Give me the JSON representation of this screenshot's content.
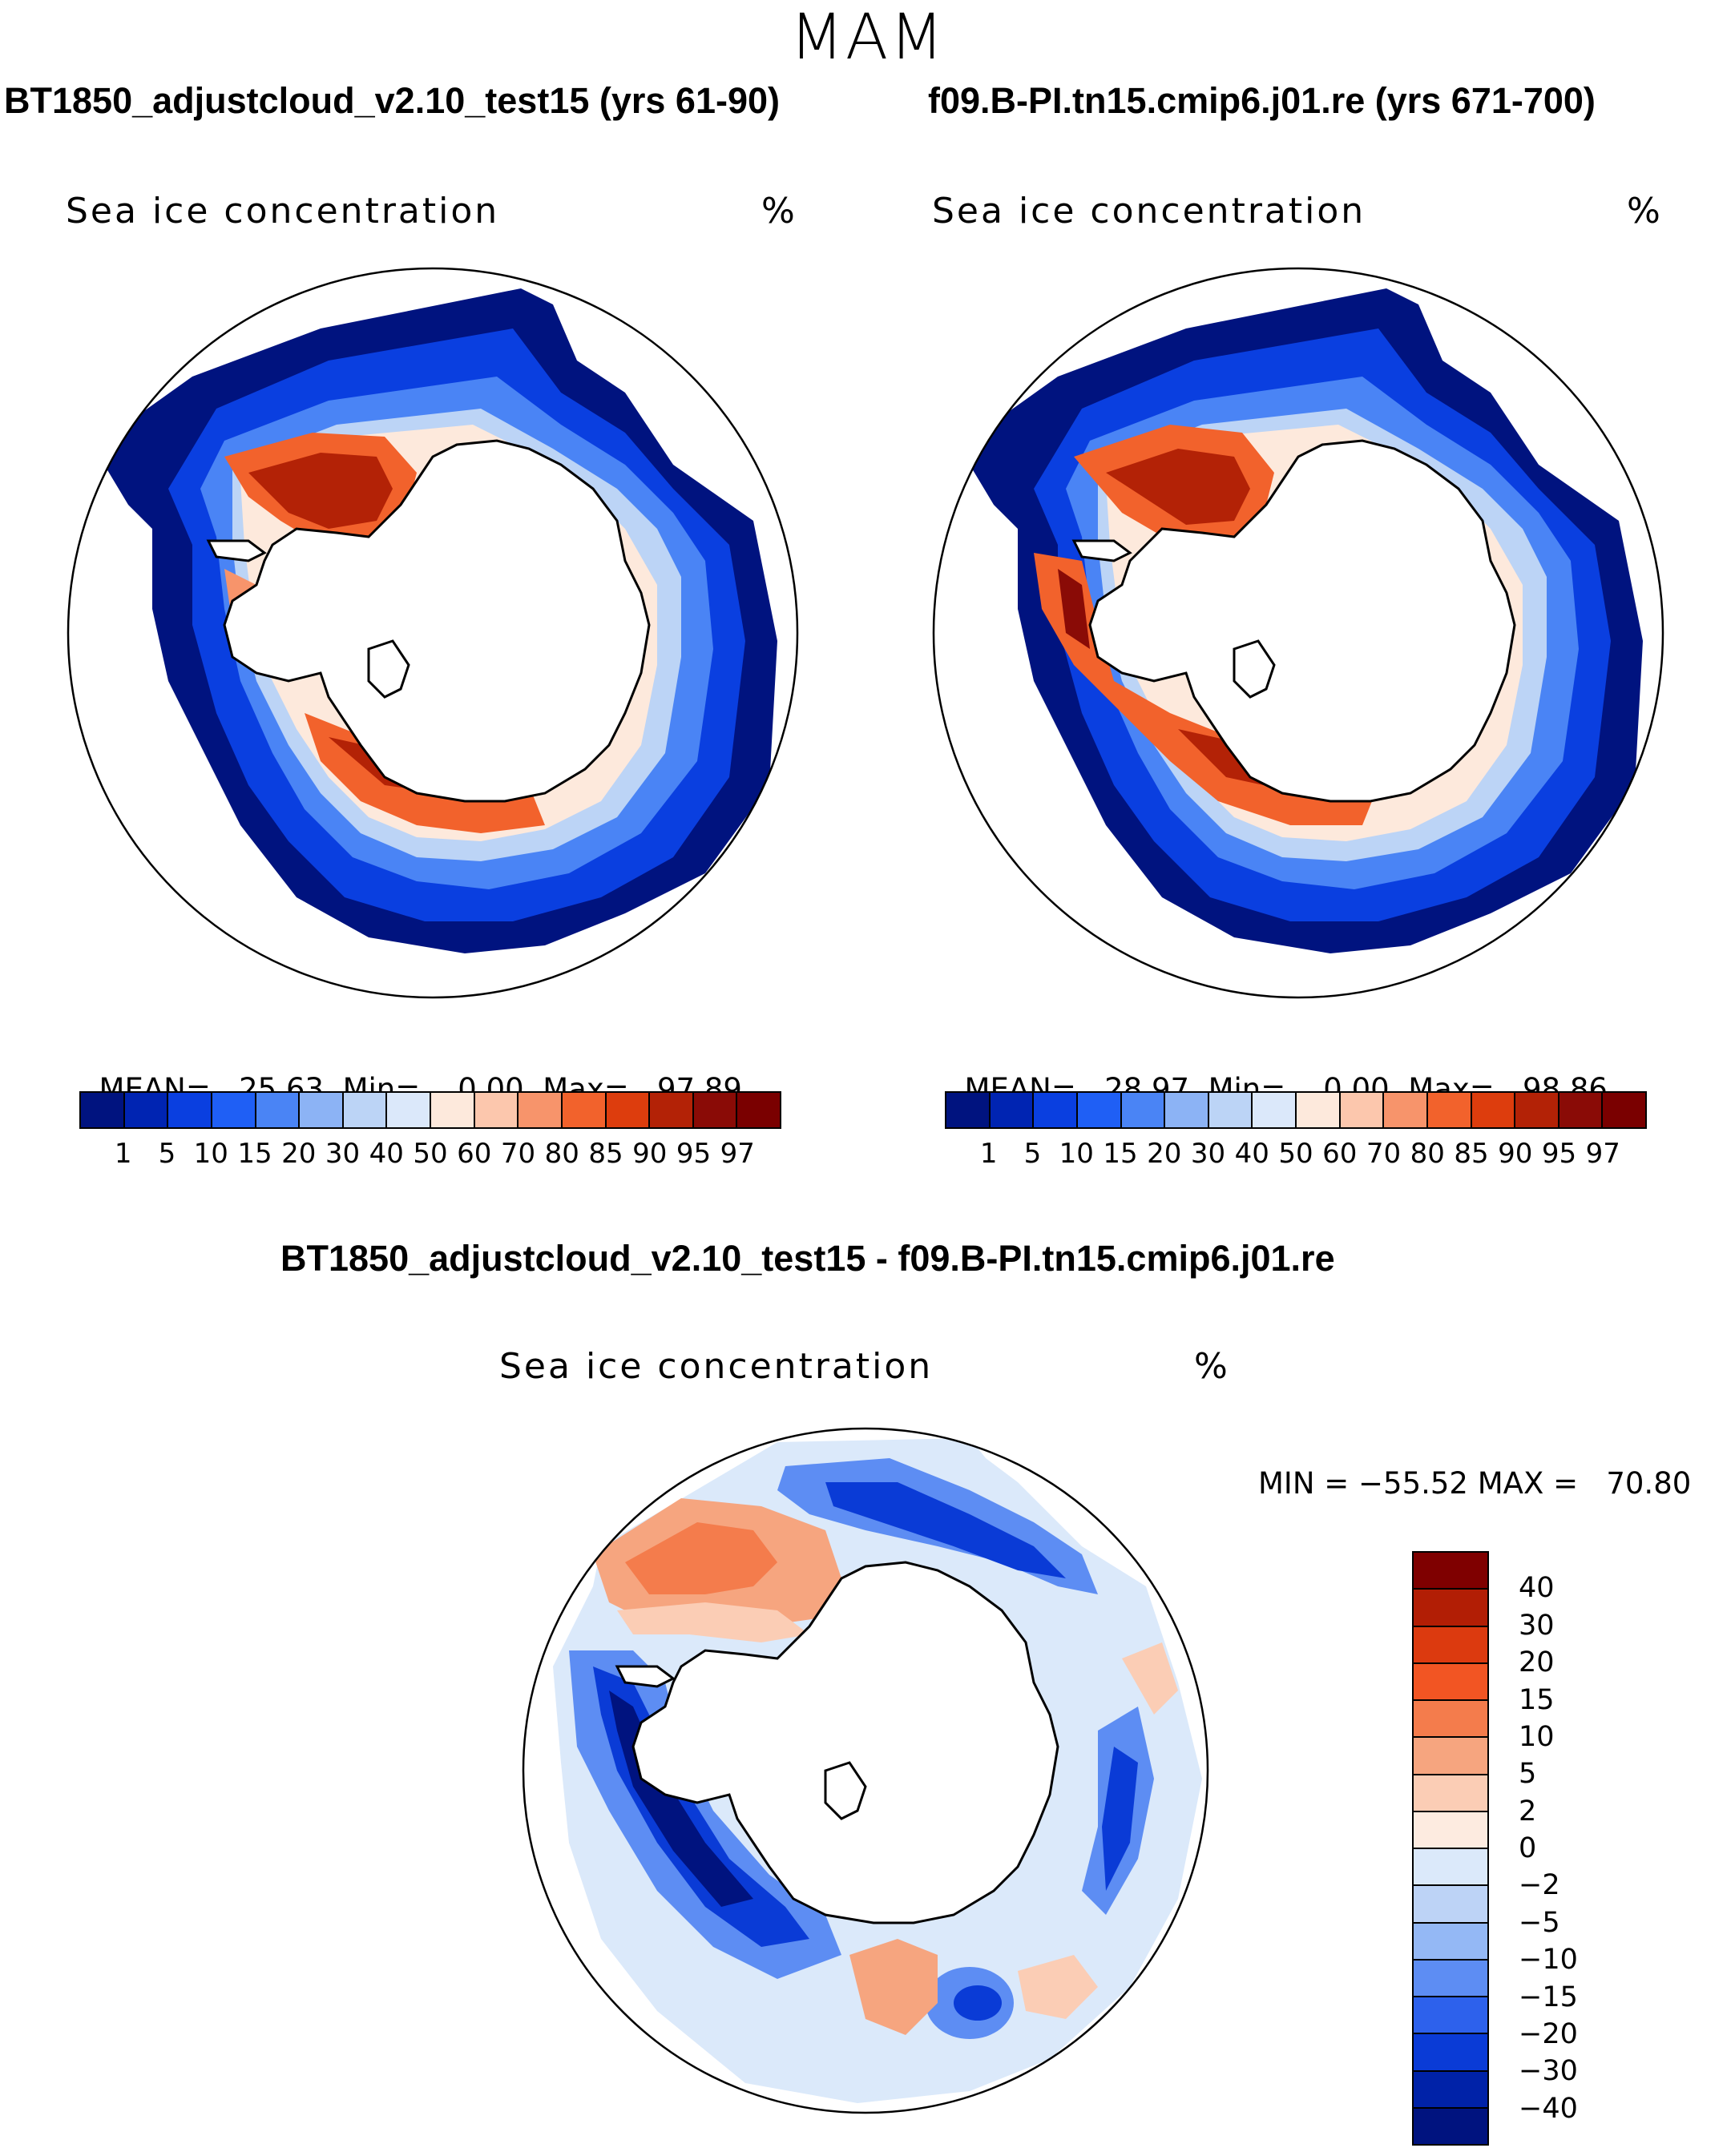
{
  "season_title": "MAM",
  "panels": [
    {
      "case_title": "BT1850_adjustcloud_v2.10_test15 (yrs 61-90)",
      "variable": "Sea ice concentration",
      "units": "%",
      "stats": {
        "mean_label": "MEAN=",
        "mean": "25.63",
        "min_label": "Min=",
        "min": "0.00",
        "max_label": "Max=",
        "max": "97.89"
      }
    },
    {
      "case_title": "f09.B-PI.tn15.cmip6.j01.re (yrs 671-700)",
      "variable": "Sea ice concentration",
      "units": "%",
      "stats": {
        "mean_label": "MEAN=",
        "mean": "28.97",
        "min_label": "Min=",
        "min": "0.00",
        "max_label": "Max=",
        "max": "98.86"
      }
    }
  ],
  "diff_panel": {
    "title": "BT1850_adjustcloud_v2.10_test15 - f09.B-PI.tn15.cmip6.j01.re",
    "variable": "Sea ice concentration",
    "units": "%",
    "minmax": "MIN = −55.52 MAX =   70.80"
  },
  "colorbar_abs": {
    "ticks": [
      "1",
      "5",
      "10",
      "15",
      "20",
      "30",
      "40",
      "50",
      "60",
      "70",
      "80",
      "85",
      "90",
      "95",
      "97"
    ],
    "colors": [
      "#00137f",
      "#0024b2",
      "#0a3fe0",
      "#1f5ff5",
      "#4a84f5",
      "#8cb3f5",
      "#bcd4f6",
      "#dbe8fa",
      "#fde9dc",
      "#fcc7ad",
      "#f7946b",
      "#f2622c",
      "#dd3d0d",
      "#b32206",
      "#8a0b06",
      "#7a0000"
    ]
  },
  "colorbar_diff": {
    "labels": [
      "40",
      "30",
      "20",
      "15",
      "10",
      "5",
      "2",
      "0",
      "−2",
      "−5",
      "−10",
      "−15",
      "−20",
      "−30",
      "−40"
    ],
    "colors": [
      "#7f0000",
      "#b21e05",
      "#dc3a0f",
      "#f25523",
      "#f47c4c",
      "#f6a57f",
      "#fbcdb5",
      "#fdebe0",
      "#dbe9fa",
      "#bdd3f6",
      "#94b8f5",
      "#5d8df3",
      "#2d61ec",
      "#0a3bd6",
      "#0022a8",
      "#00137f"
    ]
  }
}
